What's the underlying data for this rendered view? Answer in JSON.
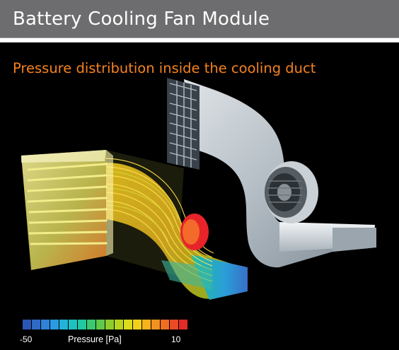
{
  "header": {
    "title": "Battery Cooling Fan Module"
  },
  "figure": {
    "subtitle": "Pressure distribution inside the cooling duct",
    "legend": {
      "min_label": "-50",
      "title": "Pressure [Pa]",
      "max_label": "10",
      "colors": [
        "#2a57b3",
        "#2f6ac6",
        "#2f82d8",
        "#2a9ae1",
        "#23b3da",
        "#1cc2c0",
        "#21c8a0",
        "#3cc86f",
        "#61c94a",
        "#8fcd2d",
        "#b8d41f",
        "#dbdc1d",
        "#f2d11d",
        "#f6b31d",
        "#f39120",
        "#ef6e22",
        "#ea4a25",
        "#e32b27"
      ]
    },
    "icons": {
      "left_model": "streamline-duct-model",
      "right_model": "duct-geometry-model"
    }
  }
}
